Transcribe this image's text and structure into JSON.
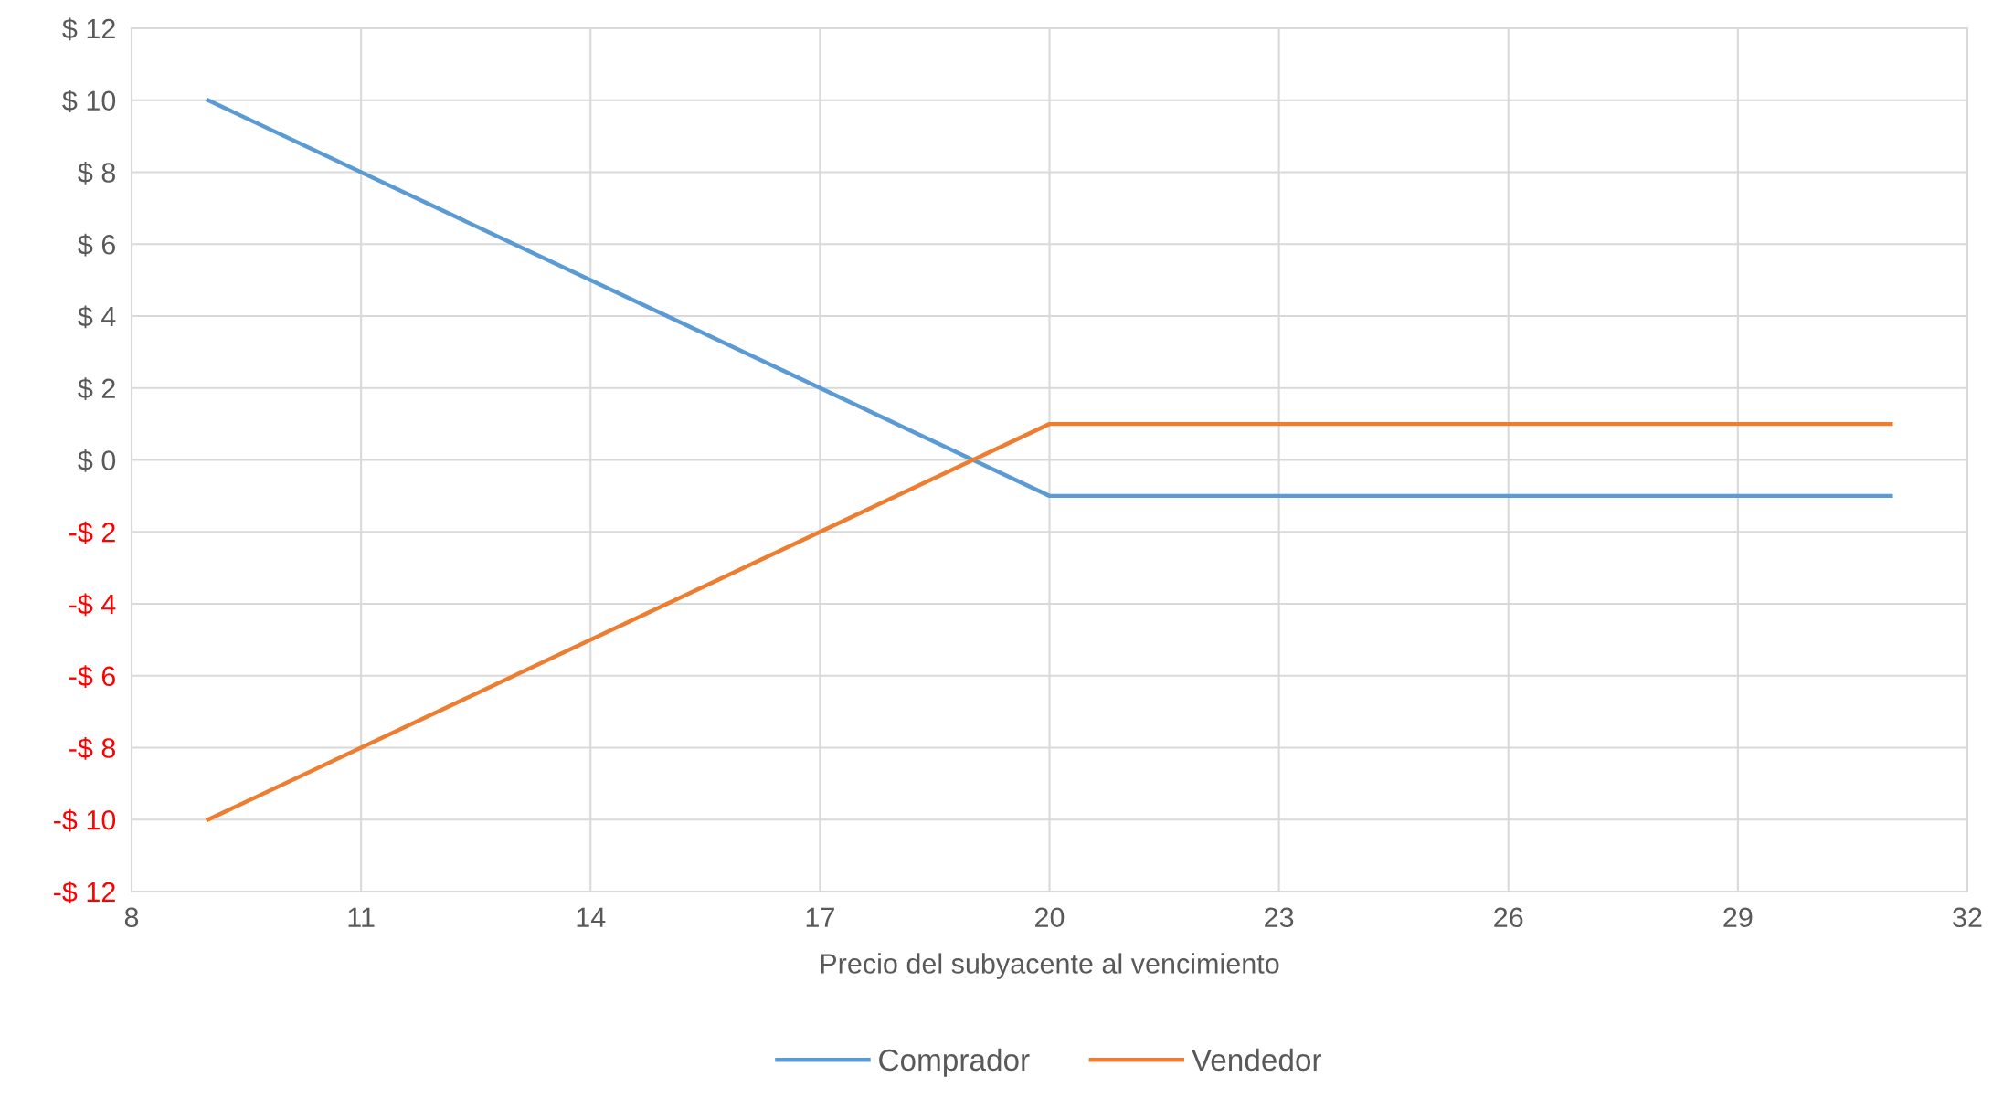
{
  "chart_data": {
    "type": "line",
    "xlabel": "Precio del subyacente al vencimiento",
    "series": [
      {
        "name": "Comprador",
        "color": "#5b9bd5",
        "x": [
          9,
          20,
          31
        ],
        "values": [
          10,
          -1,
          -1
        ]
      },
      {
        "name": "Vendedor",
        "color": "#ed7d31",
        "x": [
          9,
          20,
          31
        ],
        "values": [
          -10,
          1,
          1
        ]
      }
    ],
    "xlim": [
      8,
      32
    ],
    "xticks": [
      8,
      11,
      14,
      17,
      20,
      23,
      26,
      29,
      32
    ],
    "ylim": [
      -12,
      12
    ],
    "yticks": [
      {
        "value": -12,
        "label": "-$ 12"
      },
      {
        "value": -10,
        "label": "-$ 10"
      },
      {
        "value": -8,
        "label": "-$ 8"
      },
      {
        "value": -6,
        "label": "-$ 6"
      },
      {
        "value": -4,
        "label": "-$ 4"
      },
      {
        "value": -2,
        "label": "-$ 2"
      },
      {
        "value": 0,
        "label": "$ 0"
      },
      {
        "value": 2,
        "label": "$ 2"
      },
      {
        "value": 4,
        "label": "$ 4"
      },
      {
        "value": 6,
        "label": "$ 6"
      },
      {
        "value": 8,
        "label": "$ 8"
      },
      {
        "value": 10,
        "label": "$ 10"
      },
      {
        "value": 12,
        "label": "$ 12"
      }
    ],
    "grid": true,
    "legend": "bottom",
    "marker": "none",
    "line_style": "solid"
  }
}
